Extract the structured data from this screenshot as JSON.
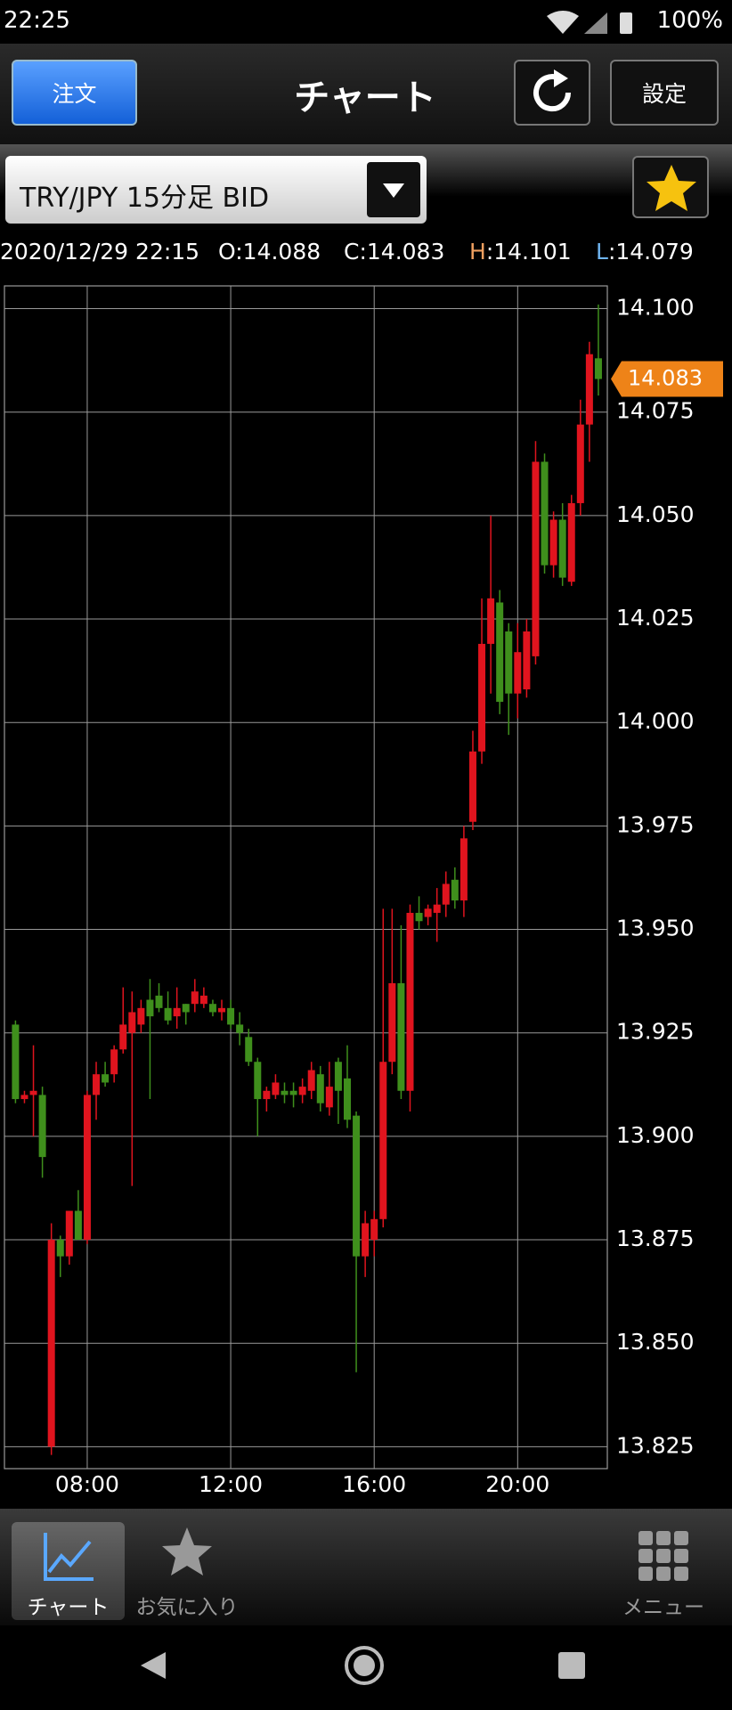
{
  "status": {
    "time": "22:25",
    "battery": "100%"
  },
  "header": {
    "order_button": "注文",
    "title": "チャート",
    "settings_button": "設定"
  },
  "selector": {
    "label": "TRY/JPY 15分足 BID"
  },
  "info": {
    "datetime": "2020/12/29 22:15",
    "items": [
      {
        "key": "O",
        "value": ":14.088"
      },
      {
        "key": "C",
        "value": ":14.083"
      },
      {
        "key": "H",
        "value": ":14.101"
      },
      {
        "key": "L",
        "value": ":14.079"
      }
    ]
  },
  "chart_data": {
    "type": "candlestick",
    "up_color": "#e0141e",
    "down_color": "#3f8f1c",
    "grid": true,
    "categories": [
      "06:00",
      "06:15",
      "06:30",
      "06:45",
      "07:00",
      "07:15",
      "07:30",
      "07:45",
      "08:00",
      "08:15",
      "08:30",
      "08:45",
      "09:00",
      "09:15",
      "09:30",
      "09:45",
      "10:00",
      "10:15",
      "10:30",
      "10:45",
      "11:00",
      "11:15",
      "11:30",
      "11:45",
      "12:00",
      "12:15",
      "12:30",
      "12:45",
      "13:00",
      "13:15",
      "13:30",
      "13:45",
      "14:00",
      "14:15",
      "14:30",
      "14:45",
      "15:00",
      "15:15",
      "15:30",
      "15:45",
      "16:00",
      "16:15",
      "16:30",
      "16:45",
      "17:00",
      "17:15",
      "17:30",
      "17:45",
      "18:00",
      "18:15",
      "18:30",
      "18:45",
      "19:00",
      "19:15",
      "19:30",
      "19:45",
      "20:00",
      "20:15",
      "20:30",
      "20:45",
      "21:00",
      "21:15",
      "21:30",
      "21:45",
      "22:00",
      "22:15"
    ],
    "open": [
      13.927,
      13.909,
      13.91,
      13.91,
      13.825,
      13.875,
      13.871,
      13.882,
      13.875,
      13.91,
      13.915,
      13.915,
      13.921,
      13.925,
      13.927,
      13.933,
      13.934,
      13.931,
      13.929,
      13.932,
      13.932,
      13.932,
      13.932,
      13.93,
      13.931,
      13.927,
      13.924,
      13.918,
      13.909,
      13.91,
      13.911,
      13.911,
      13.91,
      13.911,
      13.915,
      13.907,
      13.918,
      13.914,
      13.905,
      13.871,
      13.875,
      13.88,
      13.918,
      13.937,
      13.911,
      13.954,
      13.953,
      13.954,
      13.956,
      13.962,
      13.957,
      13.976,
      13.993,
      14.019,
      14.029,
      14.022,
      14.007,
      14.008,
      14.016,
      14.063,
      14.038,
      14.049,
      14.034,
      14.053,
      14.072,
      14.088
    ],
    "high": [
      13.928,
      13.911,
      13.922,
      13.912,
      13.879,
      13.876,
      13.882,
      13.887,
      13.911,
      13.918,
      13.918,
      13.922,
      13.936,
      13.935,
      13.933,
      13.938,
      13.937,
      13.935,
      13.936,
      13.932,
      13.938,
      13.936,
      13.933,
      13.933,
      13.933,
      13.93,
      13.926,
      13.919,
      13.912,
      13.915,
      13.913,
      13.913,
      13.914,
      13.918,
      13.917,
      13.918,
      13.919,
      13.922,
      13.906,
      13.882,
      13.882,
      13.955,
      13.955,
      13.951,
      13.956,
      13.958,
      13.956,
      13.96,
      13.964,
      13.965,
      13.975,
      13.998,
      14.03,
      14.05,
      14.032,
      14.024,
      14.024,
      14.025,
      14.068,
      14.065,
      14.051,
      14.053,
      14.055,
      14.078,
      14.092,
      14.101
    ],
    "low": [
      13.908,
      13.908,
      13.9,
      13.89,
      13.823,
      13.866,
      13.869,
      13.875,
      13.874,
      13.904,
      13.912,
      13.913,
      13.92,
      13.888,
      13.925,
      13.909,
      13.93,
      13.927,
      13.926,
      13.927,
      13.93,
      13.931,
      13.929,
      13.928,
      13.926,
      13.922,
      13.917,
      13.9,
      13.906,
      13.909,
      13.908,
      13.907,
      13.908,
      13.909,
      13.906,
      13.905,
      13.903,
      13.902,
      13.843,
      13.866,
      13.871,
      13.878,
      13.915,
      13.909,
      13.906,
      13.95,
      13.951,
      13.947,
      13.953,
      13.955,
      13.953,
      13.974,
      13.99,
      14.007,
      14.002,
      13.997,
      14.001,
      14.006,
      14.014,
      14.036,
      14.035,
      14.033,
      14.033,
      14.05,
      14.063,
      14.079
    ],
    "close": [
      13.909,
      13.91,
      13.911,
      13.895,
      13.875,
      13.871,
      13.882,
      13.875,
      13.91,
      13.915,
      13.913,
      13.921,
      13.927,
      13.93,
      13.931,
      13.929,
      13.931,
      13.928,
      13.931,
      13.93,
      13.935,
      13.934,
      13.93,
      13.931,
      13.927,
      13.925,
      13.918,
      13.909,
      13.911,
      13.913,
      13.91,
      13.91,
      13.912,
      13.916,
      13.908,
      13.912,
      13.911,
      13.904,
      13.871,
      13.879,
      13.88,
      13.918,
      13.937,
      13.911,
      13.954,
      13.952,
      13.955,
      13.956,
      13.961,
      13.957,
      13.972,
      13.993,
      14.019,
      14.03,
      14.005,
      14.007,
      14.017,
      14.022,
      14.063,
      14.038,
      14.049,
      14.035,
      14.053,
      14.072,
      14.089,
      14.083
    ],
    "ylim": [
      13.8197,
      14.1055
    ],
    "yticks": [
      13.825,
      {
        "value": 13.85,
        "label": "13.850"
      },
      13.875,
      {
        "value": 13.9,
        "label": "13.900"
      },
      13.925,
      {
        "value": 13.95,
        "label": "13.950"
      },
      13.975,
      {
        "value": 14,
        "label": "14.000"
      },
      14.025,
      {
        "value": 14.05,
        "label": "14.050"
      },
      14.075,
      {
        "value": 14.1,
        "label": "14.100"
      }
    ],
    "xticks": [
      "08:00",
      "12:00",
      "16:00",
      "20:00"
    ]
  },
  "bottom_nav": {
    "items": [
      "チャート",
      "お気に入り",
      "メニュー"
    ]
  }
}
